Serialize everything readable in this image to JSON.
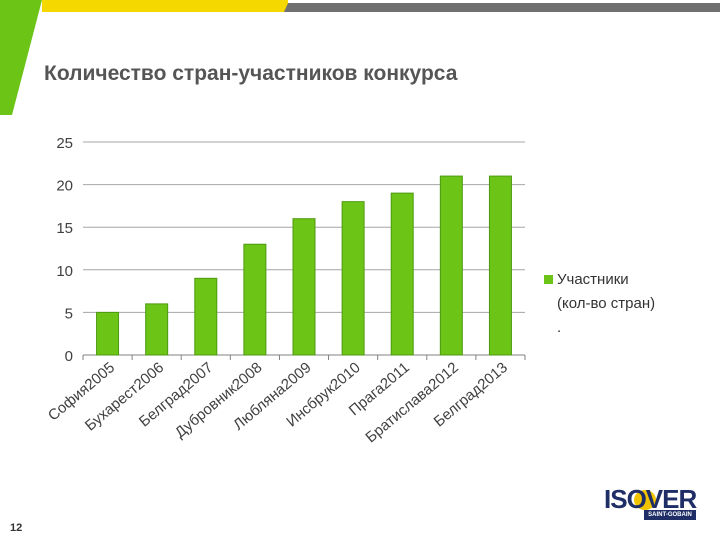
{
  "slide": {
    "title": "Количество стран-участников конкурса",
    "page_number": "12"
  },
  "brand": {
    "logo_text": "ISOVER",
    "logo_sub": "SAINT-GOBAIN",
    "green": "#6cc417",
    "yellow": "#f5d800",
    "gray": "#707070",
    "navy": "#1f2e66"
  },
  "legend": {
    "line1": "Участники",
    "line2": "(кол-во стран)",
    "line3": "."
  },
  "chart_data": {
    "type": "bar",
    "title": "",
    "xlabel": "",
    "ylabel": "",
    "categories": [
      "София2005",
      "Бухарест2006",
      "Белград2007",
      "Дубровник2008",
      "Любляна2009",
      "Инсбрук2010",
      "Прага2011",
      "Братислава2012",
      "Белград2013"
    ],
    "series": [
      {
        "name": "Участники (кол-во стран)",
        "values": [
          5,
          6,
          9,
          13,
          16,
          18,
          19,
          21,
          21
        ],
        "color": "#6cc417"
      }
    ],
    "ylim": [
      0,
      25
    ],
    "yticks": [
      0,
      5,
      10,
      15,
      20,
      25
    ],
    "grid": true,
    "legend": "right"
  }
}
